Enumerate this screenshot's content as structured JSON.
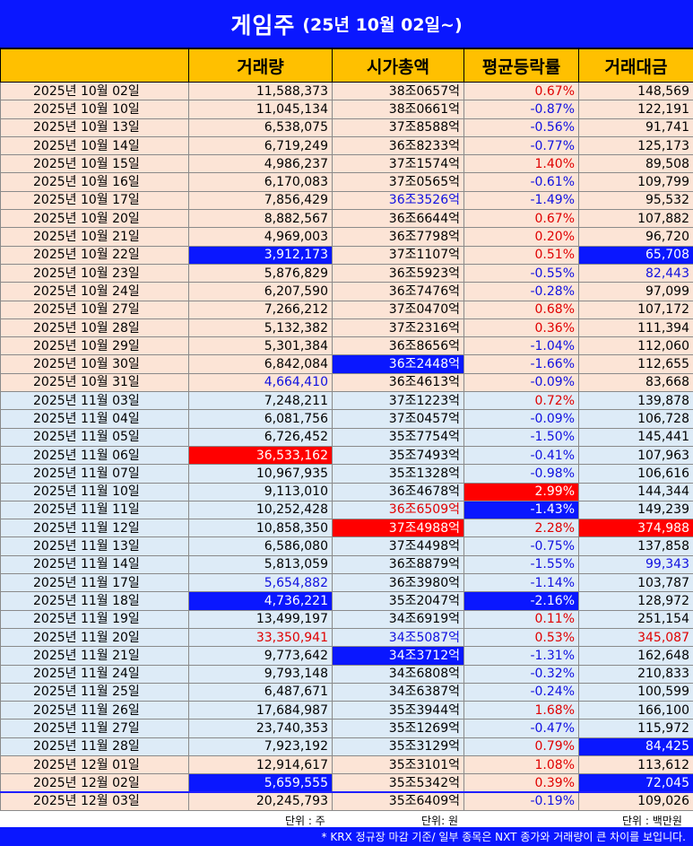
{
  "title": {
    "main": "게임주",
    "sub": "(25년 10월 02일~)"
  },
  "headers": [
    "",
    "거래량",
    "시가총액",
    "평균등락률",
    "거래대금"
  ],
  "rows": [
    {
      "date": "2025년 10월 02일",
      "volume": "11,588,373",
      "mcap": "38조0657억",
      "change": "0.67%",
      "value": "148,569",
      "group": "oct",
      "dir": [
        "",
        "",
        "",
        "pos",
        ""
      ],
      "hl": [
        "",
        "",
        "",
        "",
        ""
      ]
    },
    {
      "date": "2025년 10월 10일",
      "volume": "11,045,134",
      "mcap": "38조0661억",
      "change": "-0.87%",
      "value": "122,191",
      "group": "oct",
      "dir": [
        "",
        "",
        "",
        "neg",
        ""
      ],
      "hl": [
        "",
        "",
        "",
        "",
        ""
      ]
    },
    {
      "date": "2025년 10월 13일",
      "volume": "6,538,075",
      "mcap": "37조8588억",
      "change": "-0.56%",
      "value": "91,741",
      "group": "oct",
      "dir": [
        "",
        "",
        "",
        "neg",
        ""
      ],
      "hl": [
        "",
        "",
        "",
        "",
        ""
      ]
    },
    {
      "date": "2025년 10월 14일",
      "volume": "6,719,249",
      "mcap": "36조8233억",
      "change": "-0.77%",
      "value": "125,173",
      "group": "oct",
      "dir": [
        "",
        "",
        "",
        "neg",
        ""
      ],
      "hl": [
        "",
        "",
        "",
        "",
        ""
      ]
    },
    {
      "date": "2025년 10월 15일",
      "volume": "4,986,237",
      "mcap": "37조1574억",
      "change": "1.40%",
      "value": "89,508",
      "group": "oct",
      "dir": [
        "",
        "",
        "",
        "pos",
        ""
      ],
      "hl": [
        "",
        "",
        "",
        "",
        ""
      ]
    },
    {
      "date": "2025년 10월 16일",
      "volume": "6,170,083",
      "mcap": "37조0565억",
      "change": "-0.61%",
      "value": "109,799",
      "group": "oct",
      "dir": [
        "",
        "",
        "",
        "neg",
        ""
      ],
      "hl": [
        "",
        "",
        "",
        "",
        ""
      ]
    },
    {
      "date": "2025년 10월 17일",
      "volume": "7,856,429",
      "mcap": "36조3526억",
      "change": "-1.49%",
      "value": "95,532",
      "group": "oct",
      "dir": [
        "",
        "",
        "blue-txt",
        "neg",
        ""
      ],
      "hl": [
        "",
        "",
        "",
        "",
        ""
      ]
    },
    {
      "date": "2025년 10월 20일",
      "volume": "8,882,567",
      "mcap": "36조6644억",
      "change": "0.67%",
      "value": "107,882",
      "group": "oct",
      "dir": [
        "",
        "",
        "",
        "pos",
        ""
      ],
      "hl": [
        "",
        "",
        "",
        "",
        ""
      ]
    },
    {
      "date": "2025년 10월 21일",
      "volume": "4,969,003",
      "mcap": "36조7798억",
      "change": "0.20%",
      "value": "96,720",
      "group": "oct",
      "dir": [
        "",
        "",
        "",
        "pos",
        ""
      ],
      "hl": [
        "",
        "",
        "",
        "",
        ""
      ]
    },
    {
      "date": "2025년 10월 22일",
      "volume": "3,912,173",
      "mcap": "37조1107억",
      "change": "0.51%",
      "value": "65,708",
      "group": "oct",
      "dir": [
        "",
        "",
        "",
        "pos",
        ""
      ],
      "hl": [
        "",
        "hl-blue",
        "",
        "",
        "hl-blue"
      ]
    },
    {
      "date": "2025년 10월 23일",
      "volume": "5,876,829",
      "mcap": "36조5923억",
      "change": "-0.55%",
      "value": "82,443",
      "group": "oct",
      "dir": [
        "",
        "",
        "",
        "neg",
        "blue-txt"
      ],
      "hl": [
        "",
        "",
        "",
        "",
        ""
      ]
    },
    {
      "date": "2025년 10월 24일",
      "volume": "6,207,590",
      "mcap": "36조7476억",
      "change": "-0.28%",
      "value": "97,099",
      "group": "oct",
      "dir": [
        "",
        "",
        "",
        "neg",
        ""
      ],
      "hl": [
        "",
        "",
        "",
        "",
        ""
      ]
    },
    {
      "date": "2025년 10월 27일",
      "volume": "7,266,212",
      "mcap": "37조0470억",
      "change": "0.68%",
      "value": "107,172",
      "group": "oct",
      "dir": [
        "",
        "",
        "",
        "pos",
        ""
      ],
      "hl": [
        "",
        "",
        "",
        "",
        ""
      ]
    },
    {
      "date": "2025년 10월 28일",
      "volume": "5,132,382",
      "mcap": "37조2316억",
      "change": "0.36%",
      "value": "111,394",
      "group": "oct",
      "dir": [
        "",
        "",
        "",
        "pos",
        ""
      ],
      "hl": [
        "",
        "",
        "",
        "",
        ""
      ]
    },
    {
      "date": "2025년 10월 29일",
      "volume": "5,301,384",
      "mcap": "36조8656억",
      "change": "-1.04%",
      "value": "112,060",
      "group": "oct",
      "dir": [
        "",
        "",
        "",
        "neg",
        ""
      ],
      "hl": [
        "",
        "",
        "",
        "",
        ""
      ]
    },
    {
      "date": "2025년 10월 30일",
      "volume": "6,842,084",
      "mcap": "36조2448억",
      "change": "-1.66%",
      "value": "112,655",
      "group": "oct",
      "dir": [
        "",
        "",
        "",
        "neg",
        ""
      ],
      "hl": [
        "",
        "",
        "hl-blue",
        "",
        ""
      ]
    },
    {
      "date": "2025년 10월 31일",
      "volume": "4,664,410",
      "mcap": "36조4613억",
      "change": "-0.09%",
      "value": "83,668",
      "group": "oct",
      "dir": [
        "",
        "blue-txt",
        "",
        "neg",
        ""
      ],
      "hl": [
        "",
        "",
        "",
        "",
        ""
      ]
    },
    {
      "date": "2025년 11월 03일",
      "volume": "7,248,211",
      "mcap": "37조1223억",
      "change": "0.72%",
      "value": "139,878",
      "group": "nov",
      "dir": [
        "",
        "",
        "",
        "pos",
        ""
      ],
      "hl": [
        "",
        "",
        "",
        "",
        ""
      ]
    },
    {
      "date": "2025년 11월 04일",
      "volume": "6,081,756",
      "mcap": "37조0457억",
      "change": "-0.09%",
      "value": "106,728",
      "group": "nov",
      "dir": [
        "",
        "",
        "",
        "neg",
        ""
      ],
      "hl": [
        "",
        "",
        "",
        "",
        ""
      ]
    },
    {
      "date": "2025년 11월 05일",
      "volume": "6,726,452",
      "mcap": "35조7754억",
      "change": "-1.50%",
      "value": "145,441",
      "group": "nov",
      "dir": [
        "",
        "",
        "",
        "neg",
        ""
      ],
      "hl": [
        "",
        "",
        "",
        "",
        ""
      ]
    },
    {
      "date": "2025년 11월 06일",
      "volume": "36,533,162",
      "mcap": "35조7493억",
      "change": "-0.41%",
      "value": "107,963",
      "group": "nov",
      "dir": [
        "",
        "",
        "",
        "neg",
        ""
      ],
      "hl": [
        "",
        "hl-red",
        "",
        "",
        ""
      ]
    },
    {
      "date": "2025년 11월 07일",
      "volume": "10,967,935",
      "mcap": "35조1328억",
      "change": "-0.98%",
      "value": "106,616",
      "group": "nov",
      "dir": [
        "",
        "",
        "",
        "neg",
        ""
      ],
      "hl": [
        "",
        "",
        "",
        "",
        ""
      ]
    },
    {
      "date": "2025년 11월 10일",
      "volume": "9,113,010",
      "mcap": "36조4678억",
      "change": "2.99%",
      "value": "144,344",
      "group": "nov",
      "dir": [
        "",
        "",
        "",
        "",
        ""
      ],
      "hl": [
        "",
        "",
        "",
        "hl-red",
        ""
      ]
    },
    {
      "date": "2025년 11월 11일",
      "volume": "10,252,428",
      "mcap": "36조6509억",
      "change": "-1.43%",
      "value": "149,239",
      "group": "nov",
      "dir": [
        "",
        "",
        "red-txt",
        "",
        ""
      ],
      "hl": [
        "",
        "",
        "",
        "hl-blue",
        ""
      ]
    },
    {
      "date": "2025년 11월 12일",
      "volume": "10,858,350",
      "mcap": "37조4988억",
      "change": "2.28%",
      "value": "374,988",
      "group": "nov",
      "dir": [
        "",
        "",
        "",
        "pos",
        ""
      ],
      "hl": [
        "",
        "",
        "hl-red",
        "",
        "hl-red"
      ]
    },
    {
      "date": "2025년 11월 13일",
      "volume": "6,586,080",
      "mcap": "37조4498억",
      "change": "-0.75%",
      "value": "137,858",
      "group": "nov",
      "dir": [
        "",
        "",
        "",
        "neg",
        ""
      ],
      "hl": [
        "",
        "",
        "",
        "",
        ""
      ]
    },
    {
      "date": "2025년 11월 14일",
      "volume": "5,813,059",
      "mcap": "36조8879억",
      "change": "-1.55%",
      "value": "99,343",
      "group": "nov",
      "dir": [
        "",
        "",
        "",
        "neg",
        "blue-txt"
      ],
      "hl": [
        "",
        "",
        "",
        "",
        ""
      ]
    },
    {
      "date": "2025년 11월 17일",
      "volume": "5,654,882",
      "mcap": "36조3980억",
      "change": "-1.14%",
      "value": "103,787",
      "group": "nov",
      "dir": [
        "",
        "blue-txt",
        "",
        "neg",
        ""
      ],
      "hl": [
        "",
        "",
        "",
        "",
        ""
      ]
    },
    {
      "date": "2025년 11월 18일",
      "volume": "4,736,221",
      "mcap": "35조2047억",
      "change": "-2.16%",
      "value": "128,972",
      "group": "nov",
      "dir": [
        "",
        "",
        "",
        "",
        ""
      ],
      "hl": [
        "",
        "hl-blue",
        "",
        "hl-blue",
        ""
      ]
    },
    {
      "date": "2025년 11월 19일",
      "volume": "13,499,197",
      "mcap": "34조6919억",
      "change": "0.11%",
      "value": "251,154",
      "group": "nov",
      "dir": [
        "",
        "",
        "",
        "pos",
        ""
      ],
      "hl": [
        "",
        "",
        "",
        "",
        ""
      ]
    },
    {
      "date": "2025년 11월 20일",
      "volume": "33,350,941",
      "mcap": "34조5087억",
      "change": "0.53%",
      "value": "345,087",
      "group": "nov",
      "dir": [
        "",
        "red-txt",
        "blue-txt",
        "pos",
        "red-txt"
      ],
      "hl": [
        "",
        "",
        "",
        "",
        ""
      ]
    },
    {
      "date": "2025년 11월 21일",
      "volume": "9,773,642",
      "mcap": "34조3712억",
      "change": "-1.31%",
      "value": "162,648",
      "group": "nov",
      "dir": [
        "",
        "",
        "",
        "neg",
        ""
      ],
      "hl": [
        "",
        "",
        "hl-blue",
        "",
        ""
      ]
    },
    {
      "date": "2025년 11월 24일",
      "volume": "9,793,148",
      "mcap": "34조6808억",
      "change": "-0.32%",
      "value": "210,833",
      "group": "nov",
      "dir": [
        "",
        "",
        "",
        "neg",
        ""
      ],
      "hl": [
        "",
        "",
        "",
        "",
        ""
      ]
    },
    {
      "date": "2025년 11월 25일",
      "volume": "6,487,671",
      "mcap": "34조6387억",
      "change": "-0.24%",
      "value": "100,599",
      "group": "nov",
      "dir": [
        "",
        "",
        "",
        "neg",
        ""
      ],
      "hl": [
        "",
        "",
        "",
        "",
        ""
      ]
    },
    {
      "date": "2025년 11월 26일",
      "volume": "17,684,987",
      "mcap": "35조3944억",
      "change": "1.68%",
      "value": "166,100",
      "group": "nov",
      "dir": [
        "",
        "",
        "",
        "pos",
        ""
      ],
      "hl": [
        "",
        "",
        "",
        "",
        ""
      ]
    },
    {
      "date": "2025년 11월 27일",
      "volume": "23,740,353",
      "mcap": "35조1269억",
      "change": "-0.47%",
      "value": "115,972",
      "group": "nov",
      "dir": [
        "",
        "",
        "",
        "neg",
        ""
      ],
      "hl": [
        "",
        "",
        "",
        "",
        ""
      ]
    },
    {
      "date": "2025년 11월 28일",
      "volume": "7,923,192",
      "mcap": "35조3129억",
      "change": "0.79%",
      "value": "84,425",
      "group": "nov",
      "dir": [
        "",
        "",
        "",
        "pos",
        ""
      ],
      "hl": [
        "",
        "",
        "",
        "",
        "hl-blue"
      ]
    },
    {
      "date": "2025년 12월 01일",
      "volume": "12,914,617",
      "mcap": "35조3101억",
      "change": "1.08%",
      "value": "113,612",
      "group": "dec",
      "dir": [
        "",
        "",
        "",
        "pos",
        ""
      ],
      "hl": [
        "",
        "",
        "",
        "",
        ""
      ]
    },
    {
      "date": "2025년 12월 02일",
      "volume": "5,659,555",
      "mcap": "35조5342억",
      "change": "0.39%",
      "value": "72,045",
      "group": "dec",
      "dir": [
        "",
        "",
        "",
        "pos",
        ""
      ],
      "hl": [
        "",
        "hl-blue",
        "",
        "",
        "hl-blue"
      ]
    },
    {
      "date": "2025년 12월 03일",
      "volume": "20,245,793",
      "mcap": "35조6409억",
      "change": "-0.19%",
      "value": "109,026",
      "group": "dec",
      "dir": [
        "",
        "",
        "",
        "neg",
        ""
      ],
      "hl": [
        "",
        "",
        "",
        "",
        ""
      ]
    }
  ],
  "units": {
    "volume": "단위 : 주",
    "mcap": "단위: 원",
    "value": "단위 : 백만원"
  },
  "footnote": "* KRX 정규장 마감 기준/ 일부 종목은 NXT 종가와 거래량이 큰 차이를 보입니다.",
  "colors": {
    "title_bg": "#0a17ff",
    "header_bg": "#ffc000",
    "oct_row": "#fce4d6",
    "nov_row": "#ddebf7",
    "up": "#e00000",
    "down": "#1010e0"
  }
}
